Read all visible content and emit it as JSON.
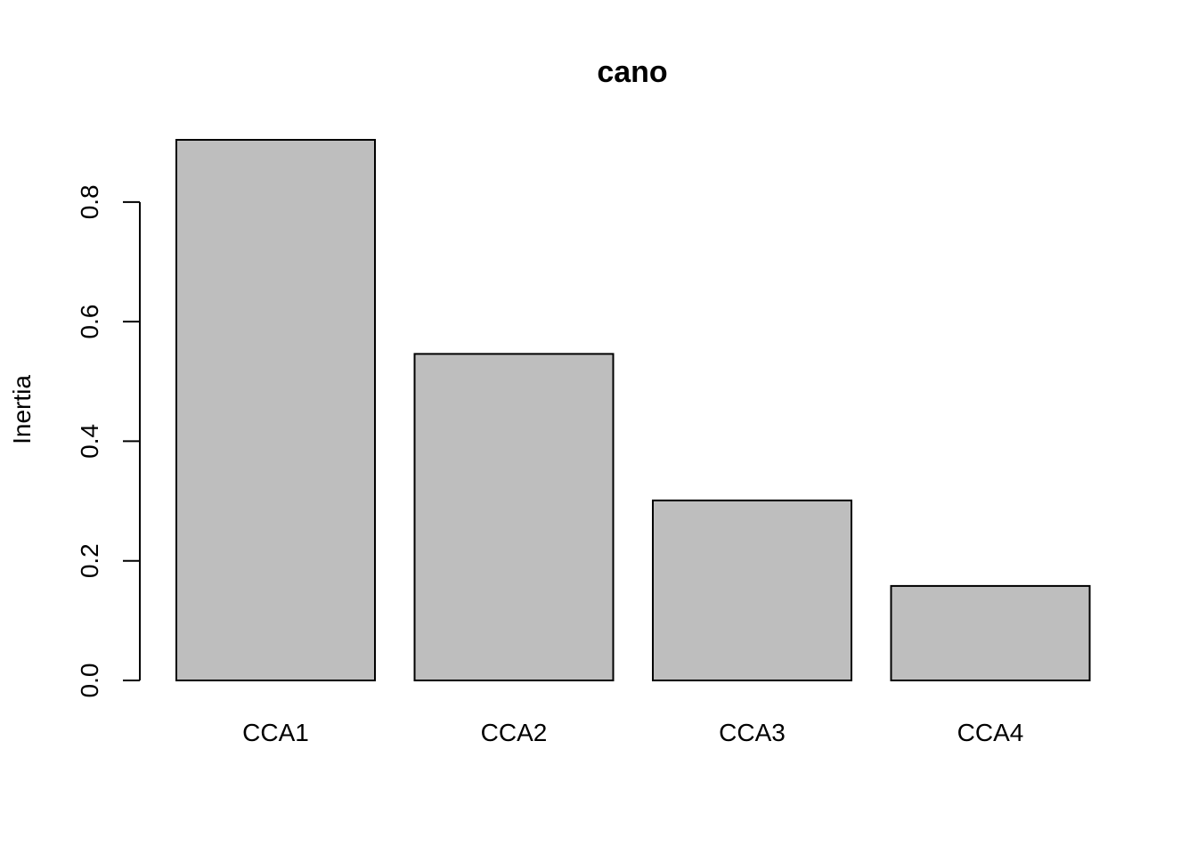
{
  "chart_data": {
    "type": "bar",
    "title": "cano",
    "xlabel": "",
    "ylabel": "Inertia",
    "categories": [
      "CCA1",
      "CCA2",
      "CCA3",
      "CCA4"
    ],
    "values": [
      0.904,
      0.546,
      0.301,
      0.158
    ],
    "ylim": [
      0,
      0.904
    ],
    "yticks": [
      0.0,
      0.2,
      0.4,
      0.6,
      0.8
    ],
    "ytick_labels": [
      "0.0",
      "0.2",
      "0.4",
      "0.6",
      "0.8"
    ],
    "grid": false,
    "legend": "none",
    "colors": {
      "bar_fill": "#bebebe",
      "bar_stroke": "#000000"
    }
  }
}
